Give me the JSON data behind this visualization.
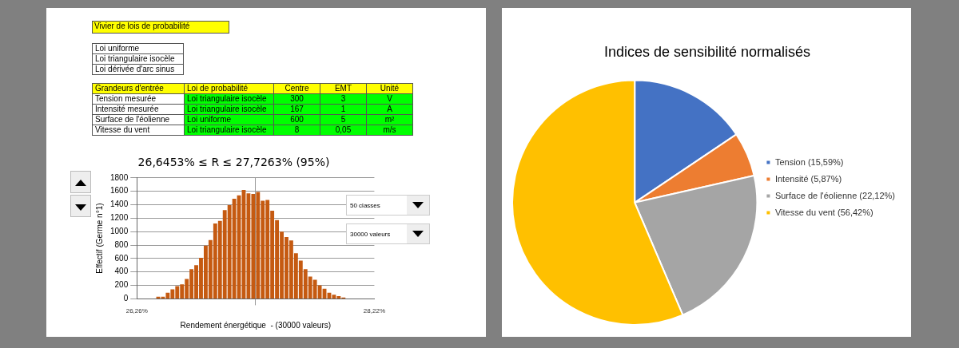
{
  "chart_data": [
    {
      "type": "other",
      "title": "Vivier de lois de probabilité",
      "annotations": [
        "Loi uniforme",
        "Loi triangulaire isocèle",
        "Loi dérivée d'arc sinus",
        "Grandeurs d'entrée",
        "Loi de probabilité",
        "Centre",
        "EMT",
        "Unité",
        "Tension mesurée",
        "Loi triangulaire isocèle",
        "300",
        "3",
        "V",
        "Intensité mesurée",
        "Loi triangulaire isocèle",
        "167",
        "1",
        "A",
        "Surface de l'éolienne",
        "Loi uniforme",
        "600",
        "5",
        "m²",
        "Vitesse du vent",
        "Loi triangulaire isocèle",
        "8",
        "0,05",
        "m/s"
      ]
    },
    {
      "type": "histogram",
      "title": "26,6453% ≤ R ≤ 27,7263% (95%)",
      "xlabel": "Rendement énergétique  - (30000 valeurs)",
      "ylabel": "Effectif (Germe n°1)",
      "color": "#c55a11",
      "annotations": [
        "50 classes",
        "30000 valeurs"
      ],
      "bins": [
        26.26,
        26.2992,
        26.3384,
        26.3776,
        26.4168,
        26.456,
        26.4952,
        26.5344,
        26.5736,
        26.6128,
        26.652,
        26.6912,
        26.7304,
        26.7696,
        26.8088,
        26.848,
        26.8872,
        26.9264,
        26.9656,
        27.0048,
        27.044,
        27.0832,
        27.1224,
        27.1616,
        27.2008,
        27.24,
        27.2792,
        27.3184,
        27.3576,
        27.3968,
        27.436,
        27.4752,
        27.5144,
        27.5536,
        27.5928,
        27.632,
        27.6712,
        27.7104,
        27.7496,
        27.7888,
        27.828,
        27.8672,
        27.9064,
        27.9456,
        27.9848,
        28.024,
        28.0632,
        28.1024,
        28.1416,
        28.1808,
        28.22
      ],
      "values": [
        0,
        0,
        0,
        0,
        30,
        30,
        90,
        140,
        190,
        215,
        295,
        440,
        500,
        610,
        790,
        875,
        1120,
        1160,
        1320,
        1395,
        1490,
        1540,
        1620,
        1570,
        1560,
        1590,
        1460,
        1470,
        1310,
        1170,
        1000,
        920,
        870,
        680,
        570,
        440,
        330,
        285,
        200,
        150,
        90,
        60,
        40,
        20,
        0,
        0,
        0,
        0,
        0,
        0
      ],
      "xlim": [
        26.26,
        28.22
      ],
      "xticks": [
        {
          "value": 26.26,
          "label": "26,26%"
        },
        {
          "value": 28.22,
          "label": "28,22%"
        }
      ],
      "ylim": [
        0,
        1800
      ],
      "yticks": [
        0,
        200,
        400,
        600,
        800,
        1000,
        1200,
        1400,
        1600,
        1800
      ],
      "grid": true
    },
    {
      "type": "pie",
      "title": "Indices de sensibilité normalisés",
      "categories": [
        "Tension (15,59%)",
        "Intensité (5,87%)",
        "Surface de l'éolienne (22,12%)",
        "Vitesse du vent (56,42%)"
      ],
      "values": [
        15.59,
        5.87,
        22.12,
        56.42
      ],
      "colors": [
        "#4472c4",
        "#ed7d31",
        "#a5a5a5",
        "#ffc000"
      ],
      "legend": "right"
    }
  ]
}
